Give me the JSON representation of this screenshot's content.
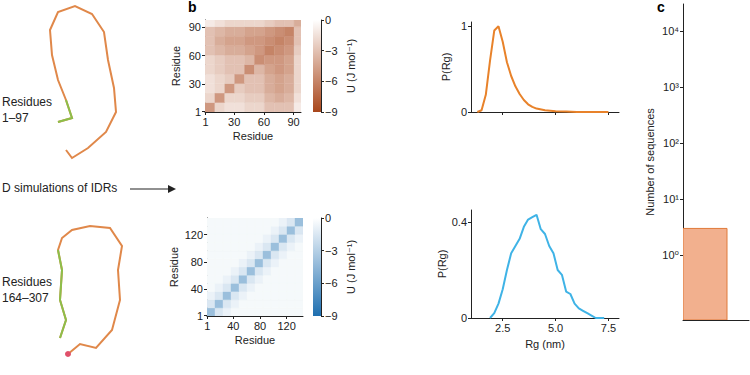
{
  "panel_labels": [
    "b",
    "c"
  ],
  "panel_a": {
    "arrow_text": "D simulations of IDRs",
    "structures": [
      [
        "Residues",
        "1–97"
      ],
      [
        "Residues",
        "164–307"
      ]
    ]
  },
  "chart_data": [
    {
      "type": "heatmap",
      "x_edges": [
        0.5,
        10.5,
        20.5,
        30.5,
        40.5,
        50.5,
        60.5,
        70.5,
        80.5,
        90.5,
        97.5
      ],
      "y_edges": [
        0.5,
        10.5,
        20.5,
        30.5,
        40.5,
        50.5,
        60.5,
        70.5,
        80.5,
        90.5,
        97.5
      ],
      "cells": [
        [
          -5,
          -2,
          -1.5,
          -1.5,
          -2,
          -2,
          -3,
          -3,
          -3,
          -1
        ],
        [
          -2,
          -5,
          -2,
          -2,
          -2.5,
          -2.5,
          -3.5,
          -4,
          -3.5,
          -1.5
        ],
        [
          -1.5,
          -2,
          -5,
          -2.5,
          -3,
          -3,
          -4,
          -4.5,
          -4,
          -2
        ],
        [
          -1.5,
          -2,
          -2.5,
          -5,
          -3,
          -3,
          -4,
          -4.5,
          -4,
          -2
        ],
        [
          -2,
          -2.5,
          -3,
          -3,
          -5.5,
          -3.5,
          -4.5,
          -5,
          -4.5,
          -2
        ],
        [
          -2,
          -2.5,
          -3,
          -3,
          -3.5,
          -5.5,
          -5,
          -5,
          -4.5,
          -2
        ],
        [
          -3,
          -3.5,
          -4,
          -4,
          -4.5,
          -5,
          -6,
          -5.5,
          -5,
          -2.5
        ],
        [
          -3,
          -4,
          -4.5,
          -4.5,
          -5,
          -5,
          -5.5,
          -6,
          -5.5,
          -3
        ],
        [
          -3,
          -3.5,
          -4,
          -4,
          -4.5,
          -4.5,
          -5,
          -5.5,
          -6,
          -3
        ],
        [
          -1,
          -1.5,
          -2,
          -2,
          -2,
          -2,
          -2.5,
          -3,
          -3,
          -4
        ]
      ],
      "xlim": [
        0.5,
        97.5
      ],
      "ylim": [
        0.5,
        97.5
      ],
      "xticks": [
        1,
        30,
        60,
        90
      ],
      "yticks": [
        1,
        30,
        60,
        90
      ],
      "xlabel": "Residue",
      "ylabel": "Residue",
      "color": "#a8461b",
      "grid": false,
      "colorbar": {
        "label": "U (J mol⁻¹)",
        "range": [
          -9,
          0
        ],
        "ticks": [
          0,
          {
            "value": -3,
            "label": "−3"
          },
          {
            "value": -6,
            "label": "−6"
          },
          {
            "value": -9,
            "label": "−9"
          }
        ]
      }
    },
    {
      "type": "line",
      "x": [
        1.3,
        1.5,
        1.7,
        1.9,
        2.1,
        2.3,
        2.5,
        2.7,
        2.9,
        3.1,
        3.3,
        3.5,
        3.7,
        3.9,
        4.1,
        4.5,
        5.0,
        5.5,
        6.0,
        6.5,
        7.0,
        7.5
      ],
      "values": [
        0,
        0.02,
        0.2,
        0.6,
        0.95,
        1.0,
        0.82,
        0.58,
        0.42,
        0.3,
        0.21,
        0.14,
        0.09,
        0.06,
        0.04,
        0.02,
        0.01,
        0.005,
        0,
        0,
        0,
        0
      ],
      "color": "#e8822a",
      "xlim": [
        1,
        8
      ],
      "ylim": [
        0,
        1.05
      ],
      "xticks": [
        2.5,
        {
          "value": 5,
          "label": "5.0"
        },
        7.5
      ],
      "yticks": [
        0,
        1
      ],
      "ylabel": "P(Rg)",
      "tick_labels": "y",
      "grid": false
    },
    {
      "type": "heatmap",
      "x_edges": [
        0.5,
        12.5,
        24.5,
        36.5,
        48.5,
        60.5,
        72.5,
        84.5,
        96.5,
        108.5,
        120.5,
        132.5,
        144.5
      ],
      "y_edges": [
        0.5,
        12.5,
        24.5,
        36.5,
        48.5,
        60.5,
        72.5,
        84.5,
        96.5,
        108.5,
        120.5,
        132.5,
        144.5
      ],
      "cells": [
        [
          -4,
          -1.5,
          -0.8,
          -0.4,
          -0.4,
          -0.4,
          -0.4,
          -0.4,
          -0.4,
          -0.4,
          -0.4,
          -0.4
        ],
        [
          -1.5,
          -4,
          -1.5,
          -0.8,
          -0.4,
          -0.4,
          -0.4,
          -0.4,
          -0.4,
          -0.4,
          -0.4,
          -0.4
        ],
        [
          -0.8,
          -1.5,
          -4,
          -1.5,
          -0.8,
          -0.4,
          -0.4,
          -0.4,
          -0.4,
          -0.4,
          -0.4,
          -0.4
        ],
        [
          -0.4,
          -0.8,
          -1.5,
          -4,
          -1.5,
          -0.8,
          -0.4,
          -0.4,
          -0.4,
          -0.4,
          -0.4,
          -0.4
        ],
        [
          -0.4,
          -0.4,
          -0.8,
          -1.5,
          -4,
          -1.5,
          -0.8,
          -0.4,
          -0.4,
          -0.4,
          -0.4,
          -0.4
        ],
        [
          -0.4,
          -0.4,
          -0.4,
          -0.8,
          -1.5,
          -4,
          -1.5,
          -0.8,
          -0.4,
          -0.4,
          -0.4,
          -0.4
        ],
        [
          -0.4,
          -0.4,
          -0.4,
          -0.4,
          -0.8,
          -1.5,
          -4,
          -1.5,
          -0.8,
          -0.4,
          -0.4,
          -0.4
        ],
        [
          -0.4,
          -0.4,
          -0.4,
          -0.4,
          -0.4,
          -0.8,
          -1.5,
          -4,
          -1.5,
          -0.8,
          -0.4,
          -0.4
        ],
        [
          -0.4,
          -0.4,
          -0.4,
          -0.4,
          -0.4,
          -0.4,
          -0.8,
          -1.5,
          -4,
          -1.5,
          -0.8,
          -0.4
        ],
        [
          -0.4,
          -0.4,
          -0.4,
          -0.4,
          -0.4,
          -0.4,
          -0.4,
          -0.8,
          -1.5,
          -4,
          -1.5,
          -0.8
        ],
        [
          -0.4,
          -0.4,
          -0.4,
          -0.4,
          -0.4,
          -0.4,
          -0.4,
          -0.4,
          -0.8,
          -1.5,
          -4,
          -1.5
        ],
        [
          -0.4,
          -0.4,
          -0.4,
          -0.4,
          -0.4,
          -0.4,
          -0.4,
          -0.4,
          -0.4,
          -0.8,
          -1.5,
          -4
        ]
      ],
      "xlim": [
        0.5,
        144.5
      ],
      "ylim": [
        0.5,
        144.5
      ],
      "xticks": [
        1,
        40,
        80,
        120
      ],
      "yticks": [
        1,
        40,
        80,
        120
      ],
      "xlabel": "Residue",
      "ylabel": "Residue",
      "color": "#1e6fb0",
      "grid": false,
      "colorbar": {
        "label": "U (J mol⁻¹)",
        "range": [
          -9,
          0
        ],
        "ticks": [
          0,
          {
            "value": -3,
            "label": "−3"
          },
          {
            "value": -6,
            "label": "−6"
          },
          {
            "value": -9,
            "label": "−9"
          }
        ]
      }
    },
    {
      "type": "line",
      "x": [
        1.9,
        2.1,
        2.3,
        2.5,
        2.7,
        2.9,
        3.1,
        3.3,
        3.5,
        3.7,
        3.9,
        4.1,
        4.3,
        4.5,
        4.7,
        4.9,
        5.1,
        5.3,
        5.5,
        5.7,
        5.9,
        6.1,
        6.3,
        6.5,
        6.7,
        6.9,
        7.1,
        7.3
      ],
      "values": [
        0,
        0.02,
        0.06,
        0.12,
        0.2,
        0.27,
        0.3,
        0.33,
        0.38,
        0.41,
        0.42,
        0.43,
        0.37,
        0.35,
        0.3,
        0.27,
        0.2,
        0.18,
        0.11,
        0.1,
        0.06,
        0.04,
        0.03,
        0.02,
        0.01,
        0,
        0,
        0
      ],
      "color": "#3fb3e6",
      "xlim": [
        1,
        8
      ],
      "ylim": [
        0,
        0.45
      ],
      "xticks": [
        2.5,
        {
          "value": 5,
          "label": "5.0"
        },
        7.5
      ],
      "yticks": [
        0,
        0.4
      ],
      "xlabel": "Rg (nm)",
      "ylabel": "P(Rg)",
      "grid": false
    },
    {
      "type": "bar",
      "bins": [
        0,
        1
      ],
      "values": [
        3
      ],
      "color": "#f2b08e",
      "log": "y",
      "xlim": [
        0,
        1.5
      ],
      "ylim": [
        0.07,
        30000
      ],
      "yticks": [
        {
          "value": 1,
          "label": "10⁰"
        },
        {
          "value": 10,
          "label": "10¹"
        },
        {
          "value": 100,
          "label": "10²"
        },
        {
          "value": 1000,
          "label": "10³"
        },
        {
          "value": 10000,
          "label": "10⁴"
        }
      ],
      "ylabel": "Number of sequences",
      "tick_labels": "y",
      "grid": false
    }
  ]
}
